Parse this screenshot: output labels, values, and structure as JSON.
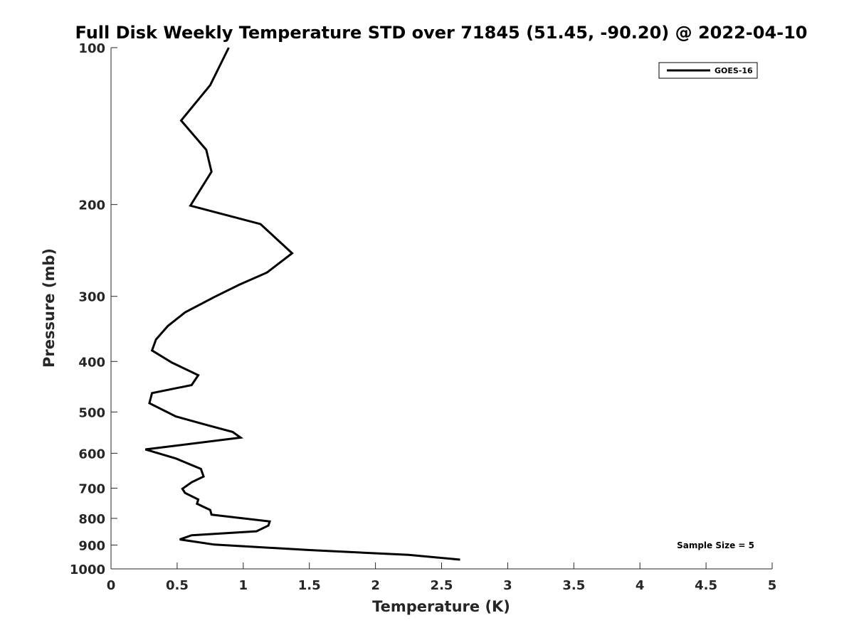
{
  "chart_data": {
    "type": "line",
    "title": "Full Disk Weekly Temperature STD over 71845 (51.45, -90.20) @ 2022-04-10",
    "xlabel": "Temperature (K)",
    "ylabel": "Pressure (mb)",
    "xlim": [
      0,
      5
    ],
    "ylim": [
      100,
      1000
    ],
    "yscale": "log",
    "y_reversed": true,
    "grid": false,
    "legend_position": "top-right",
    "x_ticks": [
      "0",
      "0.5",
      "1",
      "1.5",
      "2",
      "2.5",
      "3",
      "3.5",
      "4",
      "4.5",
      "5"
    ],
    "x_tick_values": [
      0,
      0.5,
      1,
      1.5,
      2,
      2.5,
      3,
      3.5,
      4,
      4.5,
      5
    ],
    "y_ticks": [
      "100",
      "200",
      "300",
      "400",
      "500",
      "600",
      "700",
      "800",
      "900",
      "1000"
    ],
    "y_tick_values": [
      100,
      200,
      300,
      400,
      500,
      600,
      700,
      800,
      900,
      1000
    ],
    "series": [
      {
        "name": "GOES-16",
        "color": "#000000",
        "x": [
          0.89,
          0.75,
          0.53,
          0.72,
          0.76,
          0.6,
          1.13,
          1.37,
          1.18,
          0.97,
          0.78,
          0.56,
          0.43,
          0.34,
          0.31,
          0.46,
          0.66,
          0.61,
          0.31,
          0.29,
          0.49,
          0.73,
          0.92,
          0.98,
          0.26,
          0.49,
          0.68,
          0.7,
          0.61,
          0.54,
          0.56,
          0.66,
          0.65,
          0.75,
          0.76,
          1.2,
          1.19,
          1.1,
          0.61,
          0.52,
          0.78,
          1.5,
          2.25,
          2.64
        ],
        "y": [
          100,
          118,
          138,
          157,
          173,
          201,
          218,
          248,
          270,
          285,
          301,
          322,
          342,
          363,
          381,
          402,
          425,
          444,
          460,
          481,
          510,
          530,
          546,
          560,
          590,
          614,
          643,
          665,
          682,
          702,
          715,
          736,
          750,
          771,
          787,
          811,
          826,
          847,
          862,
          878,
          898,
          920,
          940,
          960
        ]
      }
    ],
    "annotations": [
      "Sample Size = 5"
    ]
  }
}
